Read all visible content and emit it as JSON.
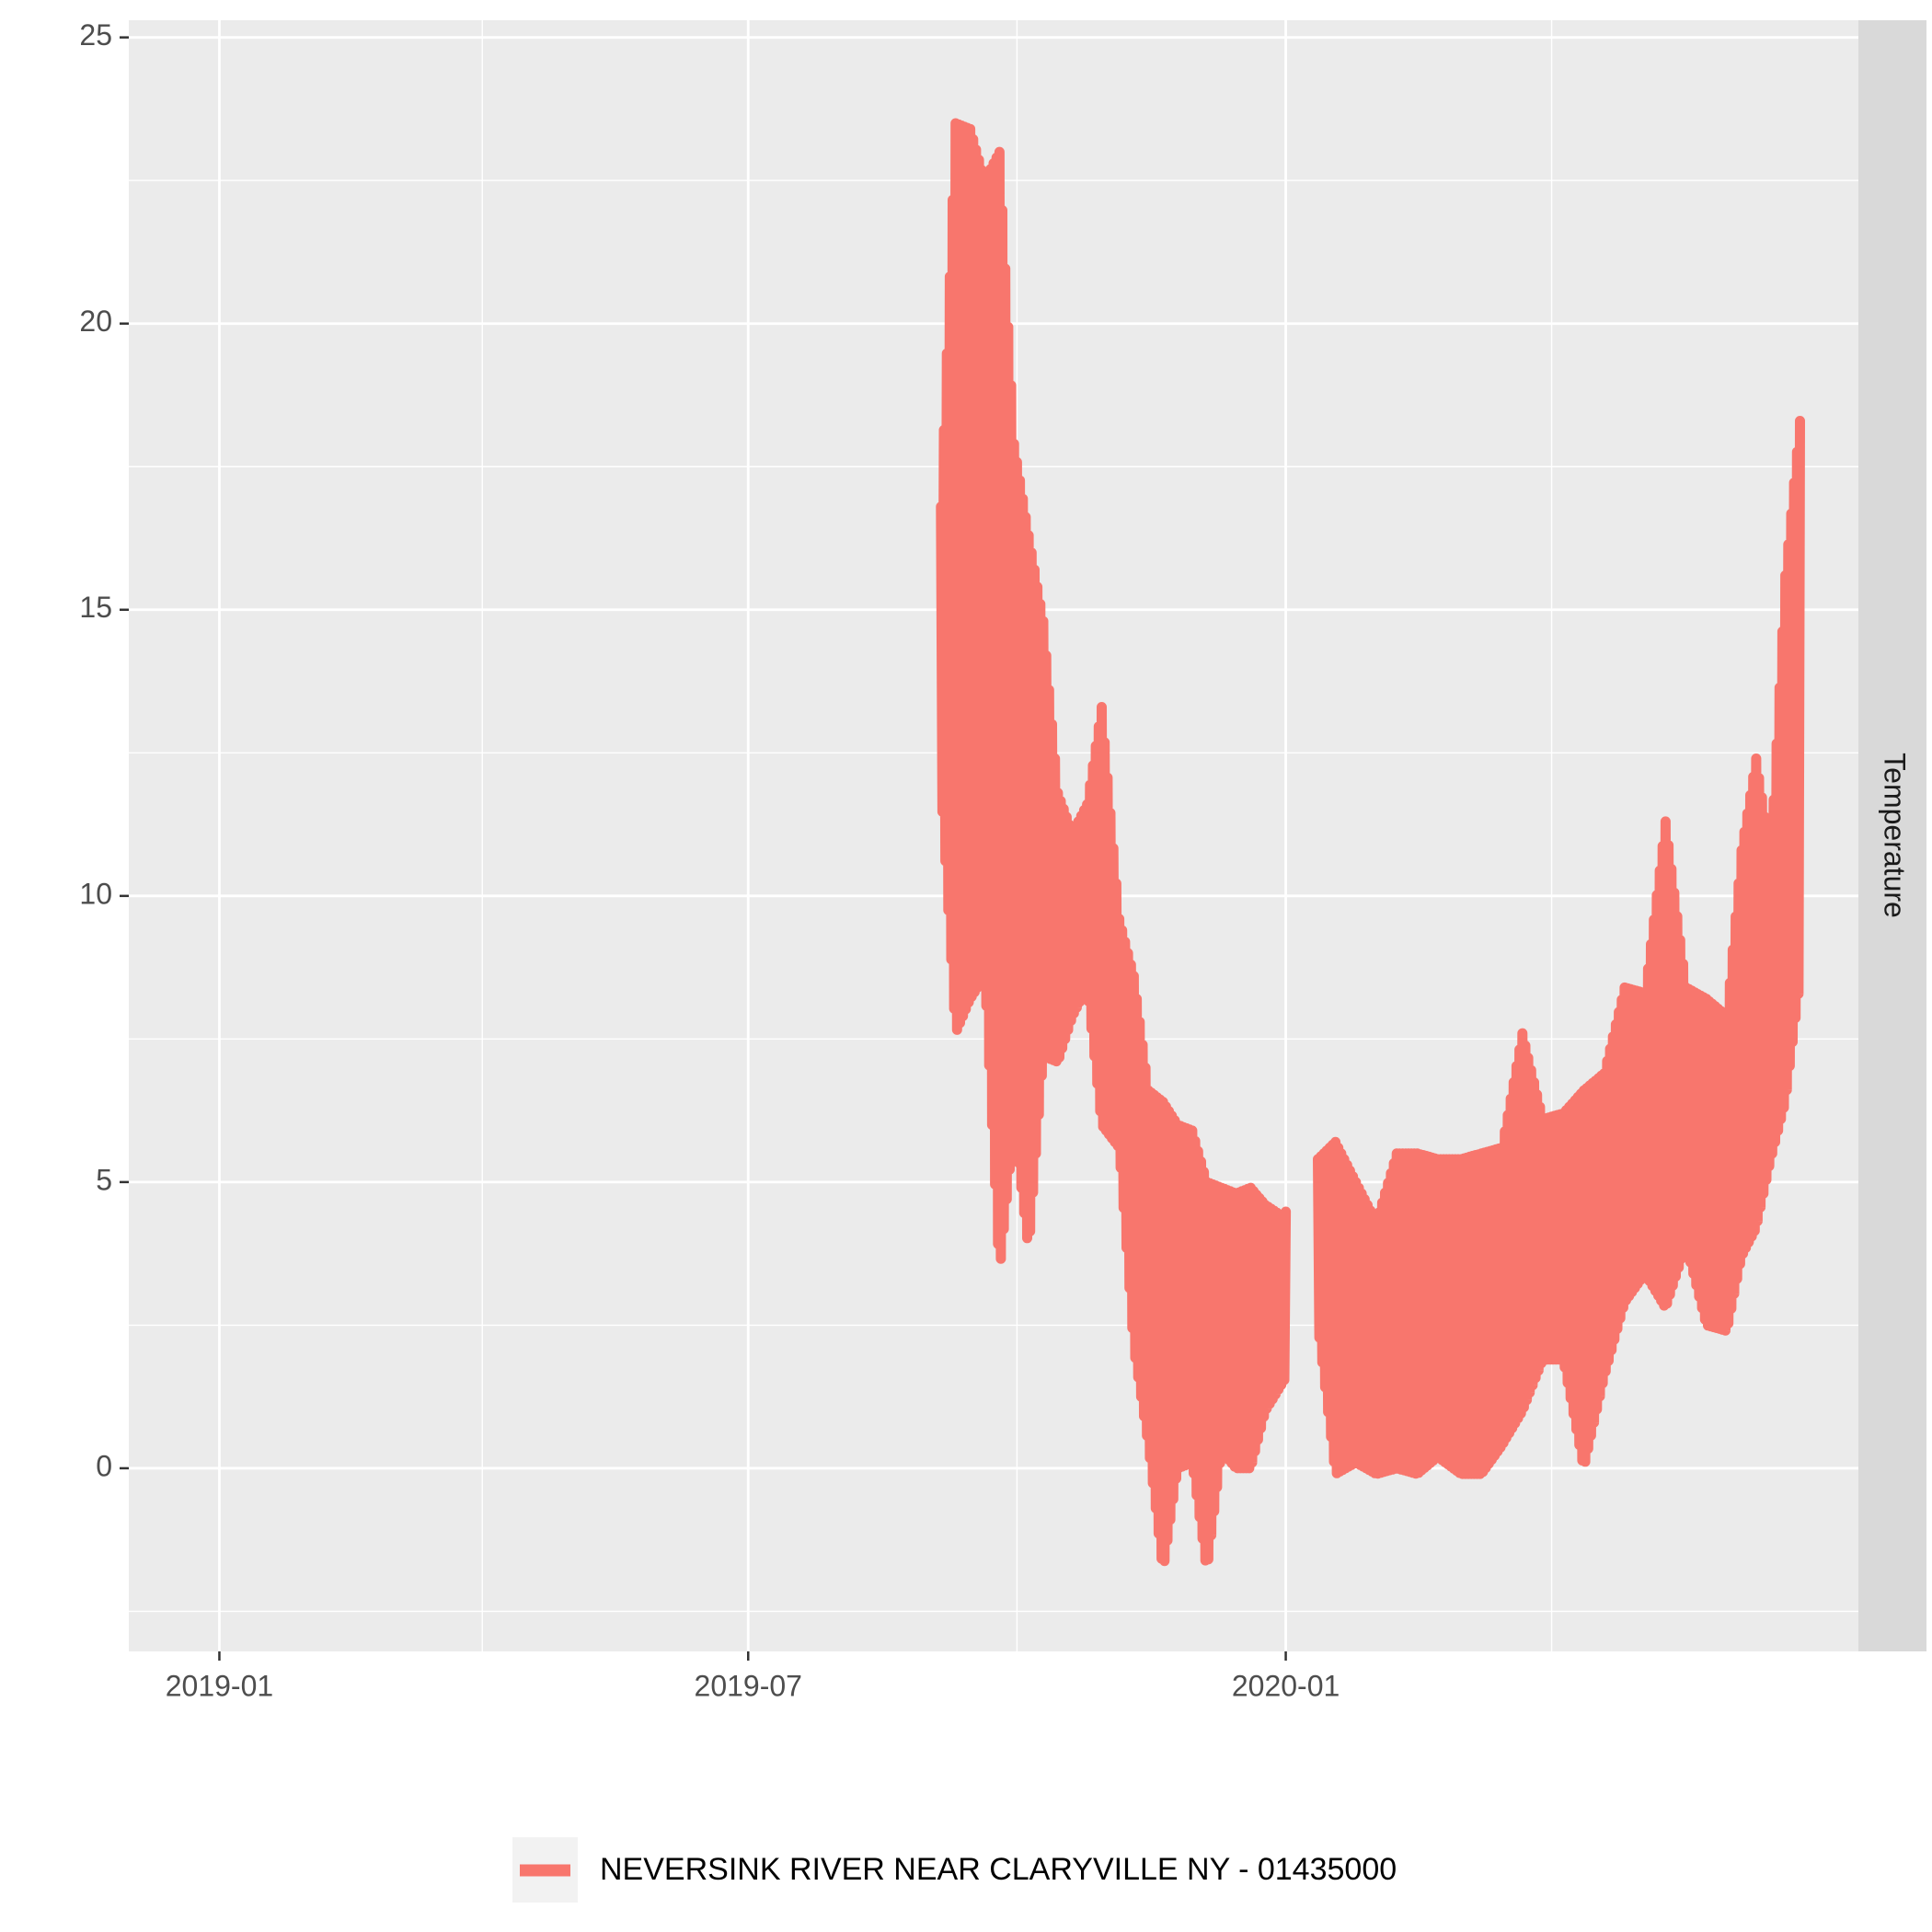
{
  "chart_data": {
    "type": "line",
    "title": "",
    "xlabel": "",
    "ylabel": "",
    "facet_label": "Temperature",
    "xlim": [
      "2018-12-01",
      "2020-07-15"
    ],
    "ylim": [
      -3.2,
      25.3
    ],
    "x_ticks": [
      {
        "date": "2019-01-01",
        "label": "2019-01"
      },
      {
        "date": "2019-07-01",
        "label": "2019-07"
      },
      {
        "date": "2020-01-01",
        "label": "2020-01"
      }
    ],
    "x_minor_ticks": [
      "2019-04-01",
      "2019-10-01",
      "2020-04-01"
    ],
    "y_ticks": [
      0,
      5,
      10,
      15,
      20,
      25
    ],
    "y_tick_labels": [
      "0",
      "5",
      "10",
      "15",
      "20",
      "25"
    ],
    "y_minor_ticks": [
      -2.5,
      2.5,
      7.5,
      12.5,
      17.5,
      22.5
    ],
    "grid": true,
    "legend_position": "bottom",
    "series": [
      {
        "name": "NEVERSINK RIVER NEAR CLARYVILLE NY - 01435000",
        "color": "#F8766D",
        "note": "daily min/max envelope of sub-daily water temperature (degC), read from plot",
        "dates": [
          "2019-09-05",
          "2019-09-10",
          "2019-09-15",
          "2019-09-20",
          "2019-09-25",
          "2019-09-30",
          "2019-10-05",
          "2019-10-10",
          "2019-10-15",
          "2019-10-20",
          "2019-10-25",
          "2019-10-30",
          "2019-11-05",
          "2019-11-10",
          "2019-11-15",
          "2019-11-20",
          "2019-11-25",
          "2019-11-30",
          "2019-12-05",
          "2019-12-10",
          "2019-12-15",
          "2019-12-20",
          "2019-12-25",
          "2019-12-31",
          "2020-01-12",
          "2020-01-18",
          "2020-01-25",
          "2020-02-01",
          "2020-02-08",
          "2020-02-15",
          "2020-02-22",
          "2020-03-01",
          "2020-03-08",
          "2020-03-15",
          "2020-03-22",
          "2020-03-29",
          "2020-04-05",
          "2020-04-12",
          "2020-04-19",
          "2020-04-26",
          "2020-05-03",
          "2020-05-10",
          "2020-05-17",
          "2020-05-24",
          "2020-05-31",
          "2020-06-05",
          "2020-06-10",
          "2020-06-15",
          "2020-06-20",
          "2020-06-25"
        ],
        "max": [
          16.8,
          23.5,
          23.4,
          22.5,
          23.0,
          17.9,
          16.3,
          14.8,
          11.8,
          11.1,
          11.6,
          13.3,
          9.6,
          8.6,
          6.6,
          6.4,
          6.0,
          5.9,
          5.0,
          4.9,
          4.8,
          4.9,
          4.6,
          4.4,
          5.4,
          5.7,
          5.0,
          4.3,
          5.5,
          5.5,
          5.4,
          5.4,
          5.5,
          5.6,
          7.6,
          6.1,
          6.2,
          6.6,
          6.9,
          8.4,
          8.3,
          11.3,
          8.4,
          8.2,
          7.9,
          10.8,
          12.4,
          10.7,
          15.6,
          18.3
        ],
        "min": [
          11.9,
          7.6,
          8.2,
          8.6,
          3.4,
          6.0,
          3.8,
          7.2,
          7.1,
          7.9,
          8.4,
          6.0,
          5.6,
          2.1,
          0.4,
          -1.8,
          0.0,
          0.1,
          -1.8,
          0.3,
          0.0,
          0.0,
          1.0,
          1.5,
          2.5,
          -0.1,
          0.1,
          -0.1,
          0.0,
          -0.1,
          0.2,
          -0.1,
          -0.1,
          0.4,
          1.0,
          1.9,
          1.9,
          0.0,
          1.6,
          2.9,
          3.4,
          2.8,
          3.9,
          2.5,
          2.4,
          3.7,
          4.2,
          5.4,
          6.4,
          8.5
        ]
      }
    ]
  }
}
